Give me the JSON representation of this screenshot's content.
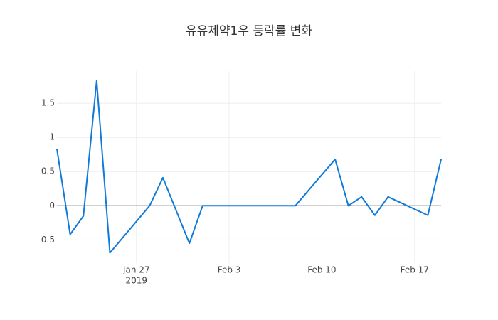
{
  "chart_data": {
    "type": "line",
    "title": "유유제약1우 등락률 변화",
    "x": [
      "2019-01-21",
      "2019-01-22",
      "2019-01-23",
      "2019-01-24",
      "2019-01-25",
      "2019-01-28",
      "2019-01-29",
      "2019-01-31",
      "2019-02-01",
      "2019-02-08",
      "2019-02-11",
      "2019-02-12",
      "2019-02-13",
      "2019-02-14",
      "2019-02-15",
      "2019-02-18",
      "2019-02-19"
    ],
    "series": [
      {
        "color": "#0f7ad8",
        "values": [
          0.83,
          -0.42,
          -0.15,
          1.83,
          -0.69,
          0,
          0.41,
          -0.55,
          0,
          0,
          0.68,
          0,
          0.13,
          -0.14,
          0.13,
          -0.14,
          0.68
        ]
      }
    ],
    "xlim": [
      "2019-01-21",
      "2019-02-19"
    ],
    "xticks": [
      {
        "value": "2019-01-27",
        "label": "Jan 27"
      },
      {
        "value": "2019-02-03",
        "label": "Feb 3"
      },
      {
        "value": "2019-02-10",
        "label": "Feb 10"
      },
      {
        "value": "2019-02-17",
        "label": "Feb 17"
      }
    ],
    "x_year_label": "2019",
    "ylim": [
      -0.84,
      1.97
    ],
    "yticks": [
      -0.5,
      0,
      0.5,
      1,
      1.5
    ],
    "grid": true
  }
}
